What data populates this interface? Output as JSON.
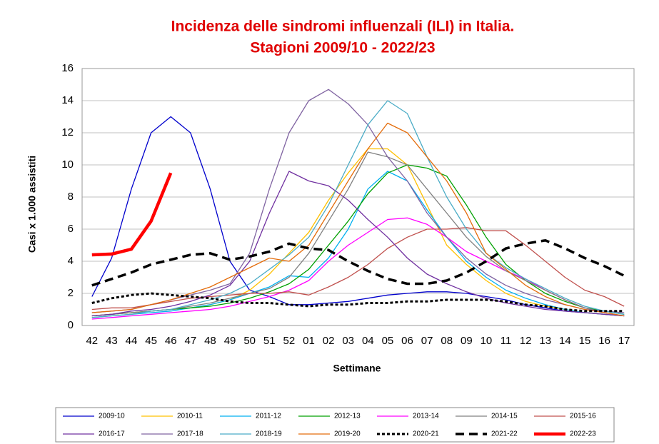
{
  "chart_data": {
    "type": "line",
    "title": "Incidenza delle sindromi influenzali (ILI)  in Italia.",
    "subtitle": "Stagioni 2009/10 - 2022/23",
    "ylabel": "Casi x 1.000 assistiti",
    "xlabel": "Settimane",
    "categories": [
      "42",
      "43",
      "44",
      "45",
      "46",
      "47",
      "48",
      "49",
      "50",
      "51",
      "52",
      "01",
      "02",
      "03",
      "04",
      "05",
      "06",
      "07",
      "08",
      "09",
      "10",
      "11",
      "12",
      "13",
      "14",
      "15",
      "16",
      "17"
    ],
    "ylim": [
      0,
      16
    ],
    "yticks": [
      0,
      2,
      4,
      6,
      8,
      10,
      12,
      14,
      16
    ],
    "grid": true,
    "legend": "bottom",
    "series": [
      {
        "name": "2009-10",
        "color": "#0000cc",
        "values": [
          1.8,
          4.2,
          8.5,
          12.0,
          13.0,
          12.0,
          8.5,
          4.0,
          2.2,
          1.8,
          1.3,
          1.3,
          1.4,
          1.5,
          1.7,
          1.9,
          2.0,
          2.1,
          2.1,
          2.0,
          1.8,
          1.6,
          1.3,
          1.1,
          0.9,
          0.8,
          0.7,
          0.6
        ]
      },
      {
        "name": "2010-11",
        "color": "#ffc000",
        "values": [
          0.6,
          0.7,
          0.8,
          0.9,
          1.0,
          1.1,
          1.3,
          1.6,
          2.2,
          3.2,
          4.5,
          5.8,
          7.8,
          9.5,
          11.0,
          11.0,
          10.0,
          7.5,
          5.0,
          3.8,
          2.8,
          2.0,
          1.5,
          1.2,
          1.0,
          0.8,
          0.7,
          0.6
        ]
      },
      {
        "name": "2011-12",
        "color": "#00b0f0",
        "values": [
          0.5,
          0.6,
          0.7,
          0.8,
          0.9,
          1.1,
          1.3,
          1.6,
          2.0,
          2.4,
          3.1,
          3.0,
          4.2,
          6.0,
          8.5,
          9.6,
          9.0,
          7.2,
          5.5,
          4.0,
          3.0,
          2.2,
          1.7,
          1.3,
          1.0,
          0.8,
          0.7,
          0.6
        ]
      },
      {
        "name": "2012-13",
        "color": "#00a000",
        "values": [
          0.6,
          0.7,
          0.8,
          0.9,
          1.0,
          1.1,
          1.2,
          1.4,
          1.7,
          2.1,
          2.6,
          3.5,
          5.0,
          6.5,
          8.2,
          9.5,
          10.0,
          9.8,
          9.3,
          7.5,
          5.5,
          3.8,
          2.8,
          2.0,
          1.5,
          1.1,
          0.9,
          0.7
        ]
      },
      {
        "name": "2013-14",
        "color": "#ff00ff",
        "values": [
          0.4,
          0.5,
          0.6,
          0.7,
          0.8,
          0.9,
          1.0,
          1.2,
          1.5,
          1.8,
          2.2,
          2.8,
          4.0,
          5.0,
          5.8,
          6.6,
          6.7,
          6.3,
          5.5,
          4.6,
          4.0,
          3.4,
          2.9,
          2.2,
          1.6,
          1.1,
          0.8,
          0.6
        ]
      },
      {
        "name": "2014-15",
        "color": "#808080",
        "values": [
          0.6,
          0.7,
          0.8,
          0.9,
          1.0,
          1.2,
          1.4,
          1.7,
          2.0,
          2.3,
          3.0,
          4.5,
          6.5,
          8.5,
          10.8,
          10.5,
          10.0,
          8.5,
          7.0,
          5.5,
          4.3,
          3.4,
          2.8,
          2.2,
          1.6,
          1.1,
          0.8,
          0.6
        ]
      },
      {
        "name": "2015-16",
        "color": "#c0504d",
        "values": [
          1.0,
          1.1,
          1.1,
          1.3,
          1.5,
          1.7,
          1.8,
          1.9,
          2.0,
          2.0,
          2.1,
          1.9,
          2.4,
          3.0,
          3.8,
          4.8,
          5.5,
          6.0,
          6.0,
          6.1,
          5.9,
          5.9,
          5.0,
          4.0,
          3.0,
          2.2,
          1.8,
          1.2
        ]
      },
      {
        "name": "2016-17",
        "color": "#7030a0",
        "values": [
          0.6,
          0.7,
          0.9,
          1.0,
          1.2,
          1.5,
          1.9,
          2.5,
          4.0,
          7.0,
          9.6,
          9.0,
          8.7,
          7.8,
          6.6,
          5.5,
          4.2,
          3.2,
          2.6,
          2.1,
          1.7,
          1.4,
          1.2,
          1.0,
          0.9,
          0.8,
          0.7,
          0.6
        ]
      },
      {
        "name": "2017-18",
        "color": "#8064a2",
        "values": [
          0.8,
          0.9,
          1.0,
          1.3,
          1.6,
          1.9,
          2.2,
          2.6,
          4.5,
          8.5,
          12.0,
          14.0,
          14.7,
          13.8,
          12.5,
          10.5,
          9.0,
          7.0,
          5.5,
          4.2,
          3.2,
          2.5,
          2.0,
          1.6,
          1.3,
          1.0,
          0.9,
          0.8
        ]
      },
      {
        "name": "2018-19",
        "color": "#4bacc6",
        "values": [
          0.5,
          0.6,
          0.7,
          0.9,
          1.0,
          1.3,
          1.6,
          2.0,
          2.6,
          3.5,
          4.4,
          5.5,
          7.5,
          10.0,
          12.5,
          14.0,
          13.2,
          10.5,
          8.0,
          6.0,
          4.5,
          3.6,
          2.9,
          2.3,
          1.7,
          1.2,
          0.9,
          0.7
        ]
      },
      {
        "name": "2019-20",
        "color": "#e46c0a",
        "values": [
          0.8,
          0.9,
          1.0,
          1.3,
          1.6,
          2.0,
          2.4,
          3.0,
          3.6,
          4.2,
          4.0,
          5.0,
          7.0,
          9.0,
          11.0,
          12.6,
          12.0,
          10.5,
          9.0,
          7.0,
          4.5,
          3.5,
          2.5,
          1.8,
          1.3,
          1.0,
          0.8,
          0.6
        ]
      },
      {
        "name": "2020-21",
        "color": "#000000",
        "style": "dotted",
        "width": 3,
        "values": [
          1.4,
          1.7,
          1.9,
          2.0,
          1.9,
          1.8,
          1.7,
          1.5,
          1.4,
          1.4,
          1.3,
          1.2,
          1.3,
          1.3,
          1.4,
          1.4,
          1.5,
          1.5,
          1.6,
          1.6,
          1.6,
          1.5,
          1.3,
          1.2,
          1.0,
          0.9,
          0.9,
          0.9
        ]
      },
      {
        "name": "2021-22",
        "color": "#000000",
        "style": "dashed",
        "width": 3.5,
        "values": [
          2.5,
          2.9,
          3.3,
          3.8,
          4.1,
          4.4,
          4.5,
          4.1,
          4.3,
          4.6,
          5.1,
          4.8,
          4.7,
          4.0,
          3.4,
          2.9,
          2.6,
          2.6,
          2.8,
          3.3,
          4.0,
          4.8,
          5.1,
          5.3,
          4.8,
          4.2,
          3.7,
          3.1
        ]
      },
      {
        "name": "2022-23",
        "color": "#ff0000",
        "width": 4.5,
        "values": [
          4.4,
          4.45,
          4.75,
          6.5,
          9.5,
          null,
          null,
          null,
          null,
          null,
          null,
          null,
          null,
          null,
          null,
          null,
          null,
          null,
          null,
          null,
          null,
          null,
          null,
          null,
          null,
          null,
          null,
          null
        ]
      }
    ]
  }
}
